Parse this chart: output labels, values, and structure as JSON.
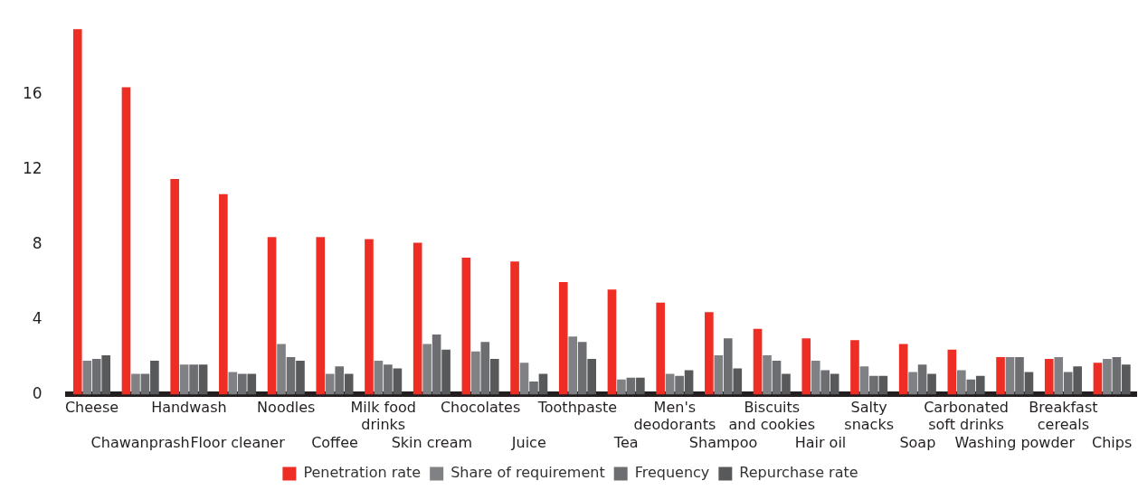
{
  "chart_data": {
    "type": "bar",
    "categories": [
      "Cheese",
      "Chawanprash",
      "Handwash",
      "Floor cleaner",
      "Noodles",
      "Coffee",
      "Milk food drinks",
      "Skin cream",
      "Chocolates",
      "Juice",
      "Toothpaste",
      "Tea",
      "Men's deodorants",
      "Shampoo",
      "Biscuits and cookies",
      "Hair oil",
      "Salty snacks",
      "Soap",
      "Carbonated soft drinks",
      "Washing powder",
      "Breakfast cereals",
      "Chips"
    ],
    "series": [
      {
        "name": "Penetration rate",
        "color": "#ee2e24",
        "values": [
          19.5,
          16.4,
          11.5,
          10.7,
          8.4,
          8.4,
          8.3,
          8.1,
          7.3,
          7.1,
          6.0,
          5.6,
          4.9,
          4.4,
          3.5,
          3.0,
          2.9,
          2.7,
          2.4,
          2.0,
          1.9,
          1.7
        ]
      },
      {
        "name": "Share of requirement",
        "color": "#808184",
        "values": [
          1.8,
          1.1,
          1.6,
          1.2,
          2.7,
          1.1,
          1.8,
          2.7,
          2.3,
          1.7,
          3.1,
          0.8,
          1.1,
          2.1,
          2.1,
          1.8,
          1.5,
          1.2,
          1.3,
          2.0,
          2.0,
          1.9
        ]
      },
      {
        "name": "Frequency",
        "color": "#6d6e71",
        "values": [
          1.9,
          1.1,
          1.6,
          1.1,
          2.0,
          1.5,
          1.6,
          3.2,
          2.8,
          0.7,
          2.8,
          0.9,
          1.0,
          3.0,
          1.8,
          1.3,
          1.0,
          1.6,
          0.8,
          2.0,
          1.2,
          2.0
        ]
      },
      {
        "name": "Repurchase rate",
        "color": "#58595b",
        "values": [
          2.1,
          1.8,
          1.6,
          1.1,
          1.8,
          1.1,
          1.4,
          2.4,
          1.9,
          1.1,
          1.9,
          0.9,
          1.3,
          1.4,
          1.1,
          1.1,
          1.0,
          1.1,
          1.0,
          1.2,
          1.5,
          1.6
        ]
      }
    ],
    "ylim": [
      0,
      19.6
    ],
    "yticks": [
      0,
      4,
      8,
      12,
      16
    ],
    "legend": "bottom"
  }
}
